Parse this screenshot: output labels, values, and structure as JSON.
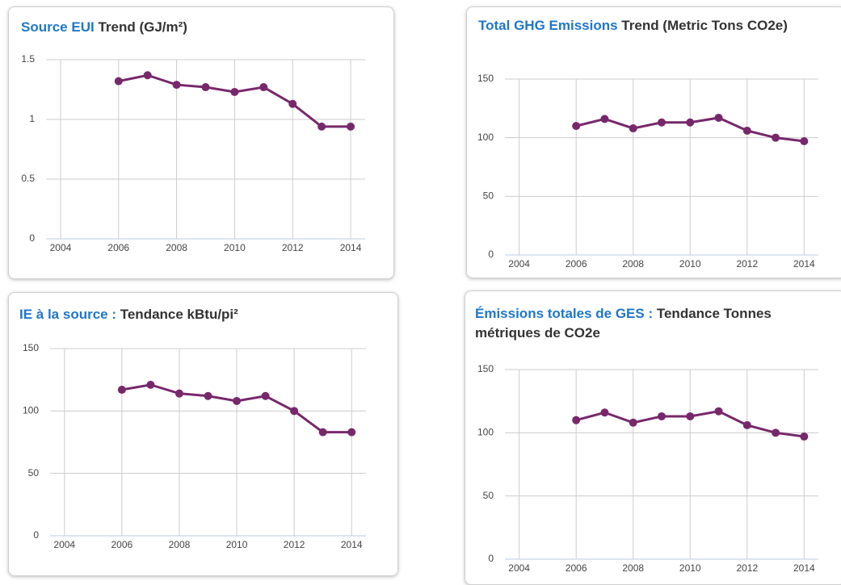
{
  "chart_data": [
    {
      "type": "line",
      "title_lead": "Source EUI",
      "title": "Trend (GJ/m²)",
      "color": "#77286b",
      "x": [
        2006,
        2007,
        2008,
        2009,
        2010,
        2011,
        2012,
        2013,
        2014
      ],
      "values": [
        1.32,
        1.37,
        1.29,
        1.27,
        1.23,
        1.27,
        1.13,
        0.94,
        0.94
      ],
      "xlim": [
        2003.5,
        2014.5
      ],
      "xticks": [
        2004,
        2006,
        2008,
        2010,
        2012,
        2014
      ],
      "ylim": [
        0,
        1.5
      ],
      "yticks": [
        0,
        0.5,
        1,
        1.5
      ],
      "grid": true
    },
    {
      "type": "line",
      "title_lead": "Total GHG Emissions",
      "title": "Trend (Metric Tons CO2e)",
      "color": "#77286b",
      "x": [
        2006,
        2007,
        2008,
        2009,
        2010,
        2011,
        2012,
        2013,
        2014
      ],
      "values": [
        110,
        116,
        108,
        113,
        113,
        117,
        106,
        100,
        97
      ],
      "xlim": [
        2003.5,
        2014.5
      ],
      "xticks": [
        2004,
        2006,
        2008,
        2010,
        2012,
        2014
      ],
      "ylim": [
        0,
        150
      ],
      "yticks": [
        0,
        50,
        100,
        150
      ],
      "grid": true
    },
    {
      "type": "line",
      "title_lead": "IE à la source :",
      "title": "Tendance kBtu/pi²",
      "color": "#77286b",
      "x": [
        2006,
        2007,
        2008,
        2009,
        2010,
        2011,
        2012,
        2013,
        2014
      ],
      "values": [
        117,
        121,
        114,
        112,
        108,
        112,
        100,
        83,
        83
      ],
      "xlim": [
        2003.5,
        2014.5
      ],
      "xticks": [
        2004,
        2006,
        2008,
        2010,
        2012,
        2014
      ],
      "ylim": [
        0,
        150
      ],
      "yticks": [
        0,
        50,
        100,
        150
      ],
      "grid": true
    },
    {
      "type": "line",
      "title_lead": "Émissions totales de GES :",
      "title": "Tendance Tonnes métriques de CO2e",
      "color": "#77286b",
      "x": [
        2006,
        2007,
        2008,
        2009,
        2010,
        2011,
        2012,
        2013,
        2014
      ],
      "values": [
        110,
        116,
        108,
        113,
        113,
        117,
        106,
        100,
        97
      ],
      "xlim": [
        2003.5,
        2014.5
      ],
      "xticks": [
        2004,
        2006,
        2008,
        2010,
        2012,
        2014
      ],
      "ylim": [
        0,
        150
      ],
      "yticks": [
        0,
        50,
        100,
        150
      ],
      "grid": true
    }
  ]
}
